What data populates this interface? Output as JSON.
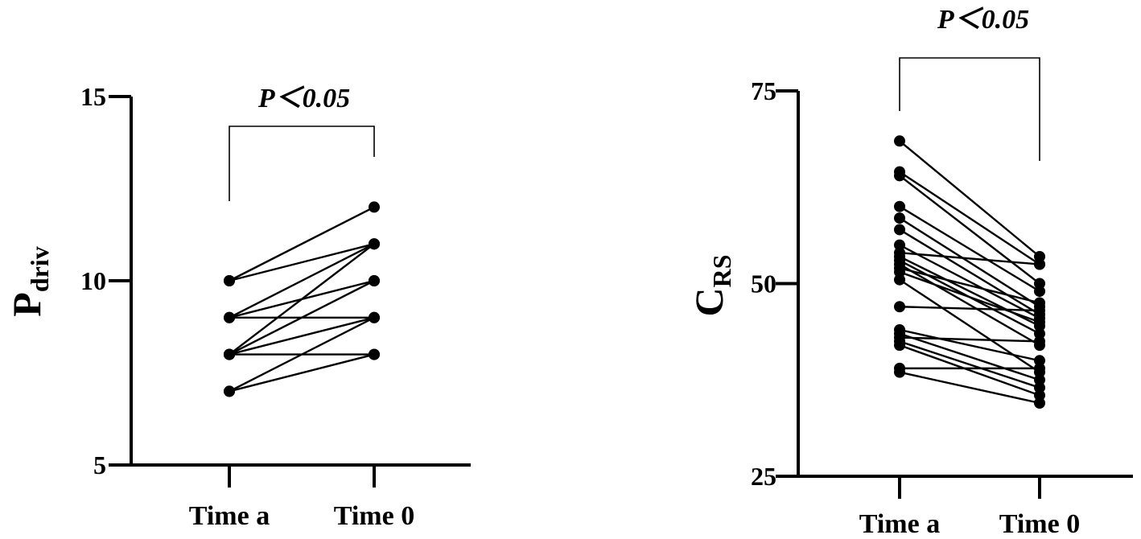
{
  "chart_data": [
    {
      "type": "scatter",
      "paired": true,
      "categories": [
        "Time a",
        "Time 0"
      ],
      "ylabel_main": "P",
      "ylabel_sub": "driv",
      "ylim": [
        5,
        15
      ],
      "yticks": [
        5,
        10,
        15
      ],
      "annotation": "P＜0.05",
      "pairs": [
        [
          10,
          12
        ],
        [
          10,
          11
        ],
        [
          9,
          11
        ],
        [
          9,
          10
        ],
        [
          9,
          9
        ],
        [
          8,
          11
        ],
        [
          8,
          10
        ],
        [
          8,
          9
        ],
        [
          8,
          8
        ],
        [
          7,
          9
        ],
        [
          7,
          8
        ]
      ]
    },
    {
      "type": "scatter",
      "paired": true,
      "categories": [
        "Time a",
        "Time 0"
      ],
      "ylabel_main": "C",
      "ylabel_sub": "RS",
      "ylim": [
        25,
        75
      ],
      "yticks": [
        25,
        50,
        75
      ],
      "annotation": "P＜0.05",
      "pairs": [
        [
          68.5,
          53.5
        ],
        [
          64.5,
          52.5
        ],
        [
          64.0,
          50.0
        ],
        [
          60.0,
          49.0
        ],
        [
          58.5,
          47.0
        ],
        [
          57.0,
          46.0
        ],
        [
          55.0,
          45.5
        ],
        [
          54.0,
          52.5
        ],
        [
          53.5,
          44.5
        ],
        [
          53.0,
          43.5
        ],
        [
          52.5,
          42.0
        ],
        [
          52.0,
          47.5
        ],
        [
          51.5,
          45.0
        ],
        [
          50.5,
          38.5
        ],
        [
          47.0,
          46.5
        ],
        [
          44.0,
          40.0
        ],
        [
          43.5,
          37.5
        ],
        [
          43.0,
          42.5
        ],
        [
          42.5,
          36.5
        ],
        [
          42.0,
          35.5
        ],
        [
          39.0,
          39.0
        ],
        [
          38.5,
          34.5
        ]
      ]
    }
  ]
}
